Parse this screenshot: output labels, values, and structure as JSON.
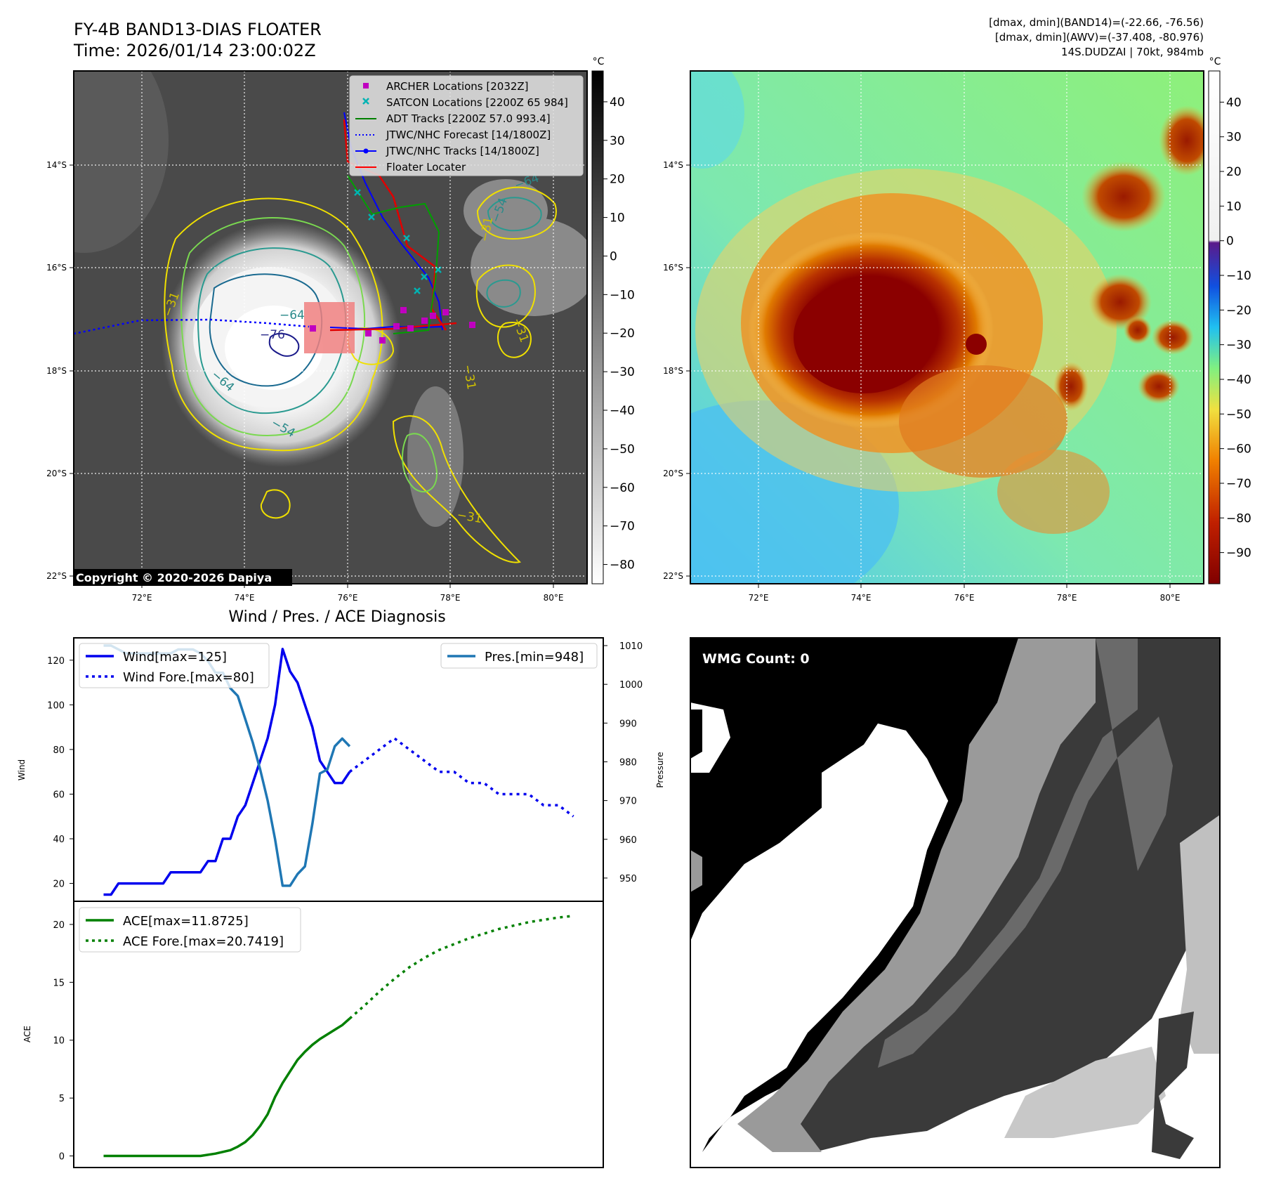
{
  "header": {
    "title_line1": "FY-4B BAND13-DIAS FLOATER",
    "title_line2": "Time: 2026/01/14 23:00:02Z",
    "info_line1": "[dmax, dmin](BAND14)=(-22.66, -76.56)",
    "info_line2": "[dmax, dmin](AWV)=(-37.408, -80.976)",
    "info_line3": "14S.DUDZAI | 70kt, 984mb"
  },
  "copyright": "Copyright © 2020-2026 Dapiya",
  "map_axes": {
    "lon_ticks": [
      "72°E",
      "74°E",
      "76°E",
      "78°E",
      "80°E"
    ],
    "lat_ticks": [
      "14°S",
      "16°S",
      "18°S",
      "20°S",
      "22°S"
    ]
  },
  "ir_map": {
    "colorbar_unit": "°C",
    "colorbar_ticks": [
      "40",
      "30",
      "20",
      "10",
      "0",
      "−10",
      "−20",
      "−30",
      "−40",
      "−50",
      "−60",
      "−70",
      "−80"
    ],
    "contour_labels": [
      "−64",
      "−64",
      "−54",
      "−31",
      "−31",
      "−64",
      "−54",
      "−31",
      "−31",
      "−31",
      "−76"
    ],
    "legend": [
      {
        "label": "ARCHER Locations [2032Z]",
        "color": "#c000c0",
        "marker": "square"
      },
      {
        "label": "SATCON Locations [2200Z 65 984]",
        "color": "#00b3b3",
        "marker": "x"
      },
      {
        "label": "ADT Tracks [2200Z 57.0 993.4]",
        "color": "#008000",
        "marker": "line"
      },
      {
        "label": "JTWC/NHC Forecast [14/1800Z]",
        "color": "#0000ff",
        "marker": "dotted"
      },
      {
        "label": "JTWC/NHC Tracks [14/1800Z]",
        "color": "#0000ff",
        "marker": "line-dot"
      },
      {
        "label": "Floater Locater",
        "color": "#ff0000",
        "marker": "line"
      }
    ]
  },
  "wv_map": {
    "colorbar_unit": "°C",
    "colorbar_ticks": [
      "40",
      "30",
      "20",
      "10",
      "0",
      "−10",
      "−20",
      "−30",
      "−40",
      "−50",
      "−60",
      "−70",
      "−80",
      "−90"
    ]
  },
  "diagnosis": {
    "title": "Wind / Pres. / ACE Diagnosis",
    "wind_ylabel": "Wind",
    "pres_ylabel": "Pressure",
    "ace_ylabel": "ACE",
    "wind_ticks": [
      "20",
      "40",
      "60",
      "80",
      "100",
      "120"
    ],
    "pres_ticks": [
      "950",
      "960",
      "970",
      "980",
      "990",
      "1000",
      "1010"
    ],
    "ace_ticks": [
      "0",
      "5",
      "10",
      "15",
      "20"
    ],
    "legend_wind": "Wind[max=125]",
    "legend_wind_fore": "Wind Fore.[max=80]",
    "legend_pres": "Pres.[min=948]",
    "legend_ace": "ACE[max=11.8725]",
    "legend_ace_fore": "ACE Fore.[max=20.7419]"
  },
  "wmg": {
    "label": "WMG Count: 0"
  },
  "chart_data": [
    {
      "type": "line",
      "title": "Wind / Pres. / ACE Diagnosis",
      "ylabel": "Wind",
      "ylim": [
        12,
        130
      ],
      "x_index_range": [
        0,
        50
      ],
      "series": [
        {
          "name": "Wind[max=125]",
          "color": "#0000ee",
          "style": "solid",
          "x": [
            0,
            1,
            2,
            3,
            4,
            5,
            6,
            7,
            8,
            9,
            10,
            11,
            12,
            13,
            14,
            15,
            16,
            17,
            18,
            19,
            20,
            21,
            22,
            23,
            24,
            25,
            26,
            27,
            28,
            29,
            30,
            31,
            32,
            33
          ],
          "values": [
            15,
            15,
            20,
            20,
            20,
            20,
            20,
            20,
            20,
            25,
            25,
            25,
            25,
            25,
            30,
            30,
            40,
            40,
            50,
            55,
            65,
            75,
            85,
            100,
            125,
            115,
            110,
            100,
            90,
            75,
            70,
            65,
            65,
            70
          ]
        },
        {
          "name": "Wind Fore.[max=80]",
          "color": "#0000ee",
          "style": "dotted",
          "x": [
            33,
            35,
            37,
            39,
            41,
            43,
            45,
            47,
            49,
            51,
            53,
            55,
            57,
            59,
            61,
            63
          ],
          "values": [
            70,
            75,
            80,
            85,
            80,
            75,
            70,
            70,
            65,
            65,
            60,
            60,
            60,
            55,
            55,
            50
          ]
        },
        {
          "name": "Pres.[min=948]",
          "color": "#1f77b4",
          "style": "solid",
          "axis": "right",
          "ylim": [
            944,
            1012
          ],
          "x": [
            0,
            1,
            2,
            3,
            4,
            5,
            6,
            7,
            8,
            9,
            10,
            11,
            12,
            13,
            14,
            15,
            16,
            17,
            18,
            19,
            20,
            21,
            22,
            23,
            24,
            25,
            26,
            27,
            28,
            29,
            30,
            31,
            32,
            33
          ],
          "values": [
            1010,
            1010,
            1009,
            1008,
            1008,
            1008,
            1008,
            1008,
            1008,
            1008,
            1009,
            1009,
            1009,
            1008,
            1006,
            1003,
            1003,
            999,
            997,
            991,
            985,
            978,
            970,
            960,
            948,
            948,
            951,
            953,
            964,
            977,
            978,
            984,
            986,
            984
          ]
        }
      ]
    },
    {
      "type": "line",
      "ylabel": "ACE",
      "ylim": [
        -1,
        22
      ],
      "series": [
        {
          "name": "ACE[max=11.8725]",
          "color": "#008000",
          "style": "solid",
          "x": [
            0,
            5,
            10,
            13,
            15,
            17,
            18,
            19,
            20,
            21,
            22,
            23,
            24,
            25,
            26,
            27,
            28,
            29,
            30,
            31,
            32,
            33
          ],
          "values": [
            0,
            0,
            0,
            0,
            0.2,
            0.5,
            0.8,
            1.2,
            1.8,
            2.6,
            3.6,
            5.1,
            6.3,
            7.3,
            8.3,
            9.0,
            9.6,
            10.1,
            10.5,
            10.9,
            11.3,
            11.87
          ]
        },
        {
          "name": "ACE Fore.[max=20.7419]",
          "color": "#008000",
          "style": "dotted",
          "x": [
            33,
            35,
            37,
            39,
            41,
            43,
            45,
            47,
            49,
            51,
            53,
            55,
            57,
            59,
            61,
            63
          ],
          "values": [
            11.87,
            13.0,
            14.2,
            15.3,
            16.3,
            17.1,
            17.8,
            18.3,
            18.8,
            19.2,
            19.6,
            19.9,
            20.2,
            20.4,
            20.6,
            20.74
          ]
        }
      ]
    }
  ]
}
